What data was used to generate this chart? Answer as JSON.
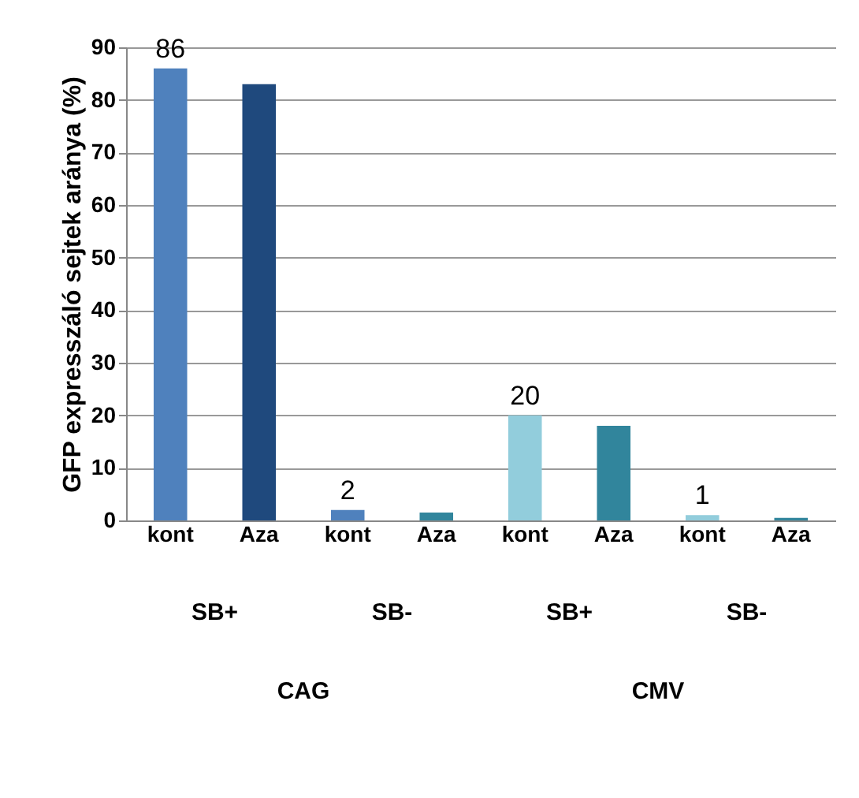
{
  "chart_data": {
    "type": "bar",
    "ylabel": "GFP expresszáló sejtek aránya (%)",
    "categories": [
      "kont",
      "Aza",
      "kont",
      "Aza",
      "kont",
      "Aza",
      "kont",
      "Aza"
    ],
    "values": [
      86,
      83,
      2,
      1.5,
      20,
      18,
      1,
      0.5
    ],
    "colors": [
      "#4f81bd",
      "#1f497d",
      "#4f81bd",
      "#31859c",
      "#92cddc",
      "#31859c",
      "#92cddc",
      "#31859c"
    ],
    "value_labels": [
      "86",
      null,
      "2",
      null,
      "20",
      null,
      "1",
      null
    ],
    "annotations": [
      "SB+",
      "SB-",
      "SB+",
      "SB-",
      "CAG",
      "CMV"
    ],
    "ylim": [
      0,
      90
    ],
    "yticks": [
      0,
      10,
      20,
      30,
      40,
      50,
      60,
      70,
      80,
      90
    ],
    "grid": "y"
  }
}
